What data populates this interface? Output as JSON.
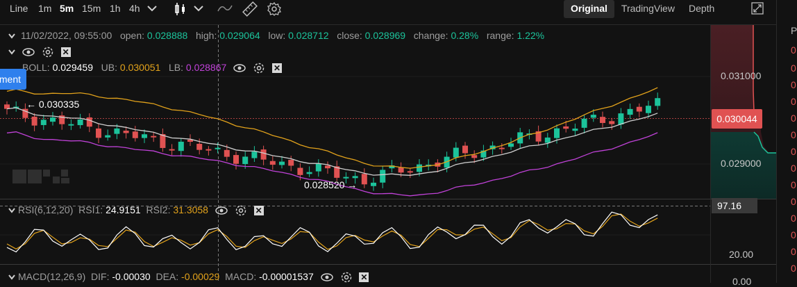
{
  "toolbar": {
    "timeframes": [
      "Line",
      "1m",
      "5m",
      "15m",
      "1h",
      "4h"
    ],
    "active_timeframe": "5m",
    "view_tabs": [
      "Original",
      "TradingView",
      "Depth"
    ],
    "active_view": "Original"
  },
  "ohlc": {
    "datetime": "11/02/2022, 09:55:00",
    "open_label": "open:",
    "open": "0.028888",
    "high_label": "high:",
    "high": "0.029064",
    "low_label": "low:",
    "low": "0.028712",
    "close_label": "close:",
    "close": "0.028969",
    "change_label": "change:",
    "change": "0.28%",
    "range_label": "range:",
    "range": "1.22%"
  },
  "boll": {
    "label": "BOLL:",
    "value": "0.029459",
    "ub_label": "UB:",
    "ub": "0.030051",
    "lb_label": "LB:",
    "lb": "0.028867"
  },
  "tooltip_button": "ment",
  "annotations": {
    "high_mark": "← 0.030335",
    "low_mark": "0.028520 →"
  },
  "price_axis": {
    "p1": "0.031000",
    "p2": "0.029000",
    "current": "0.030044"
  },
  "rsi": {
    "label": "RSI(6,12,20)",
    "rsi1_label": "RSI1:",
    "rsi1": "24.9151",
    "rsi2_label": "RSI2:",
    "rsi2": "31.3058",
    "axis_top": "97.16",
    "axis_low": "20.00"
  },
  "macd": {
    "label": "MACD(12,26,9)",
    "dif_label": "DIF:",
    "dif": "-0.00030",
    "dea_label": "DEA:",
    "dea": "-0.00029",
    "macd_label": "MACD:",
    "macd": "-0.00001537",
    "axis": "0.00"
  },
  "colors": {
    "up": "#1cc39b",
    "down": "#e05252",
    "boll_ub": "#e2a21b",
    "boll_mid": "#cfcfcf",
    "boll_lb": "#c042d8"
  },
  "icons": [
    "candlestick-icon",
    "line-tool-icon",
    "ruler-icon",
    "settings-icon",
    "fullscreen-icon",
    "eye-icon",
    "gear-icon",
    "close-icon",
    "chevron-down-icon"
  ],
  "right_strip_char": "0",
  "right_strip_top": "P"
}
